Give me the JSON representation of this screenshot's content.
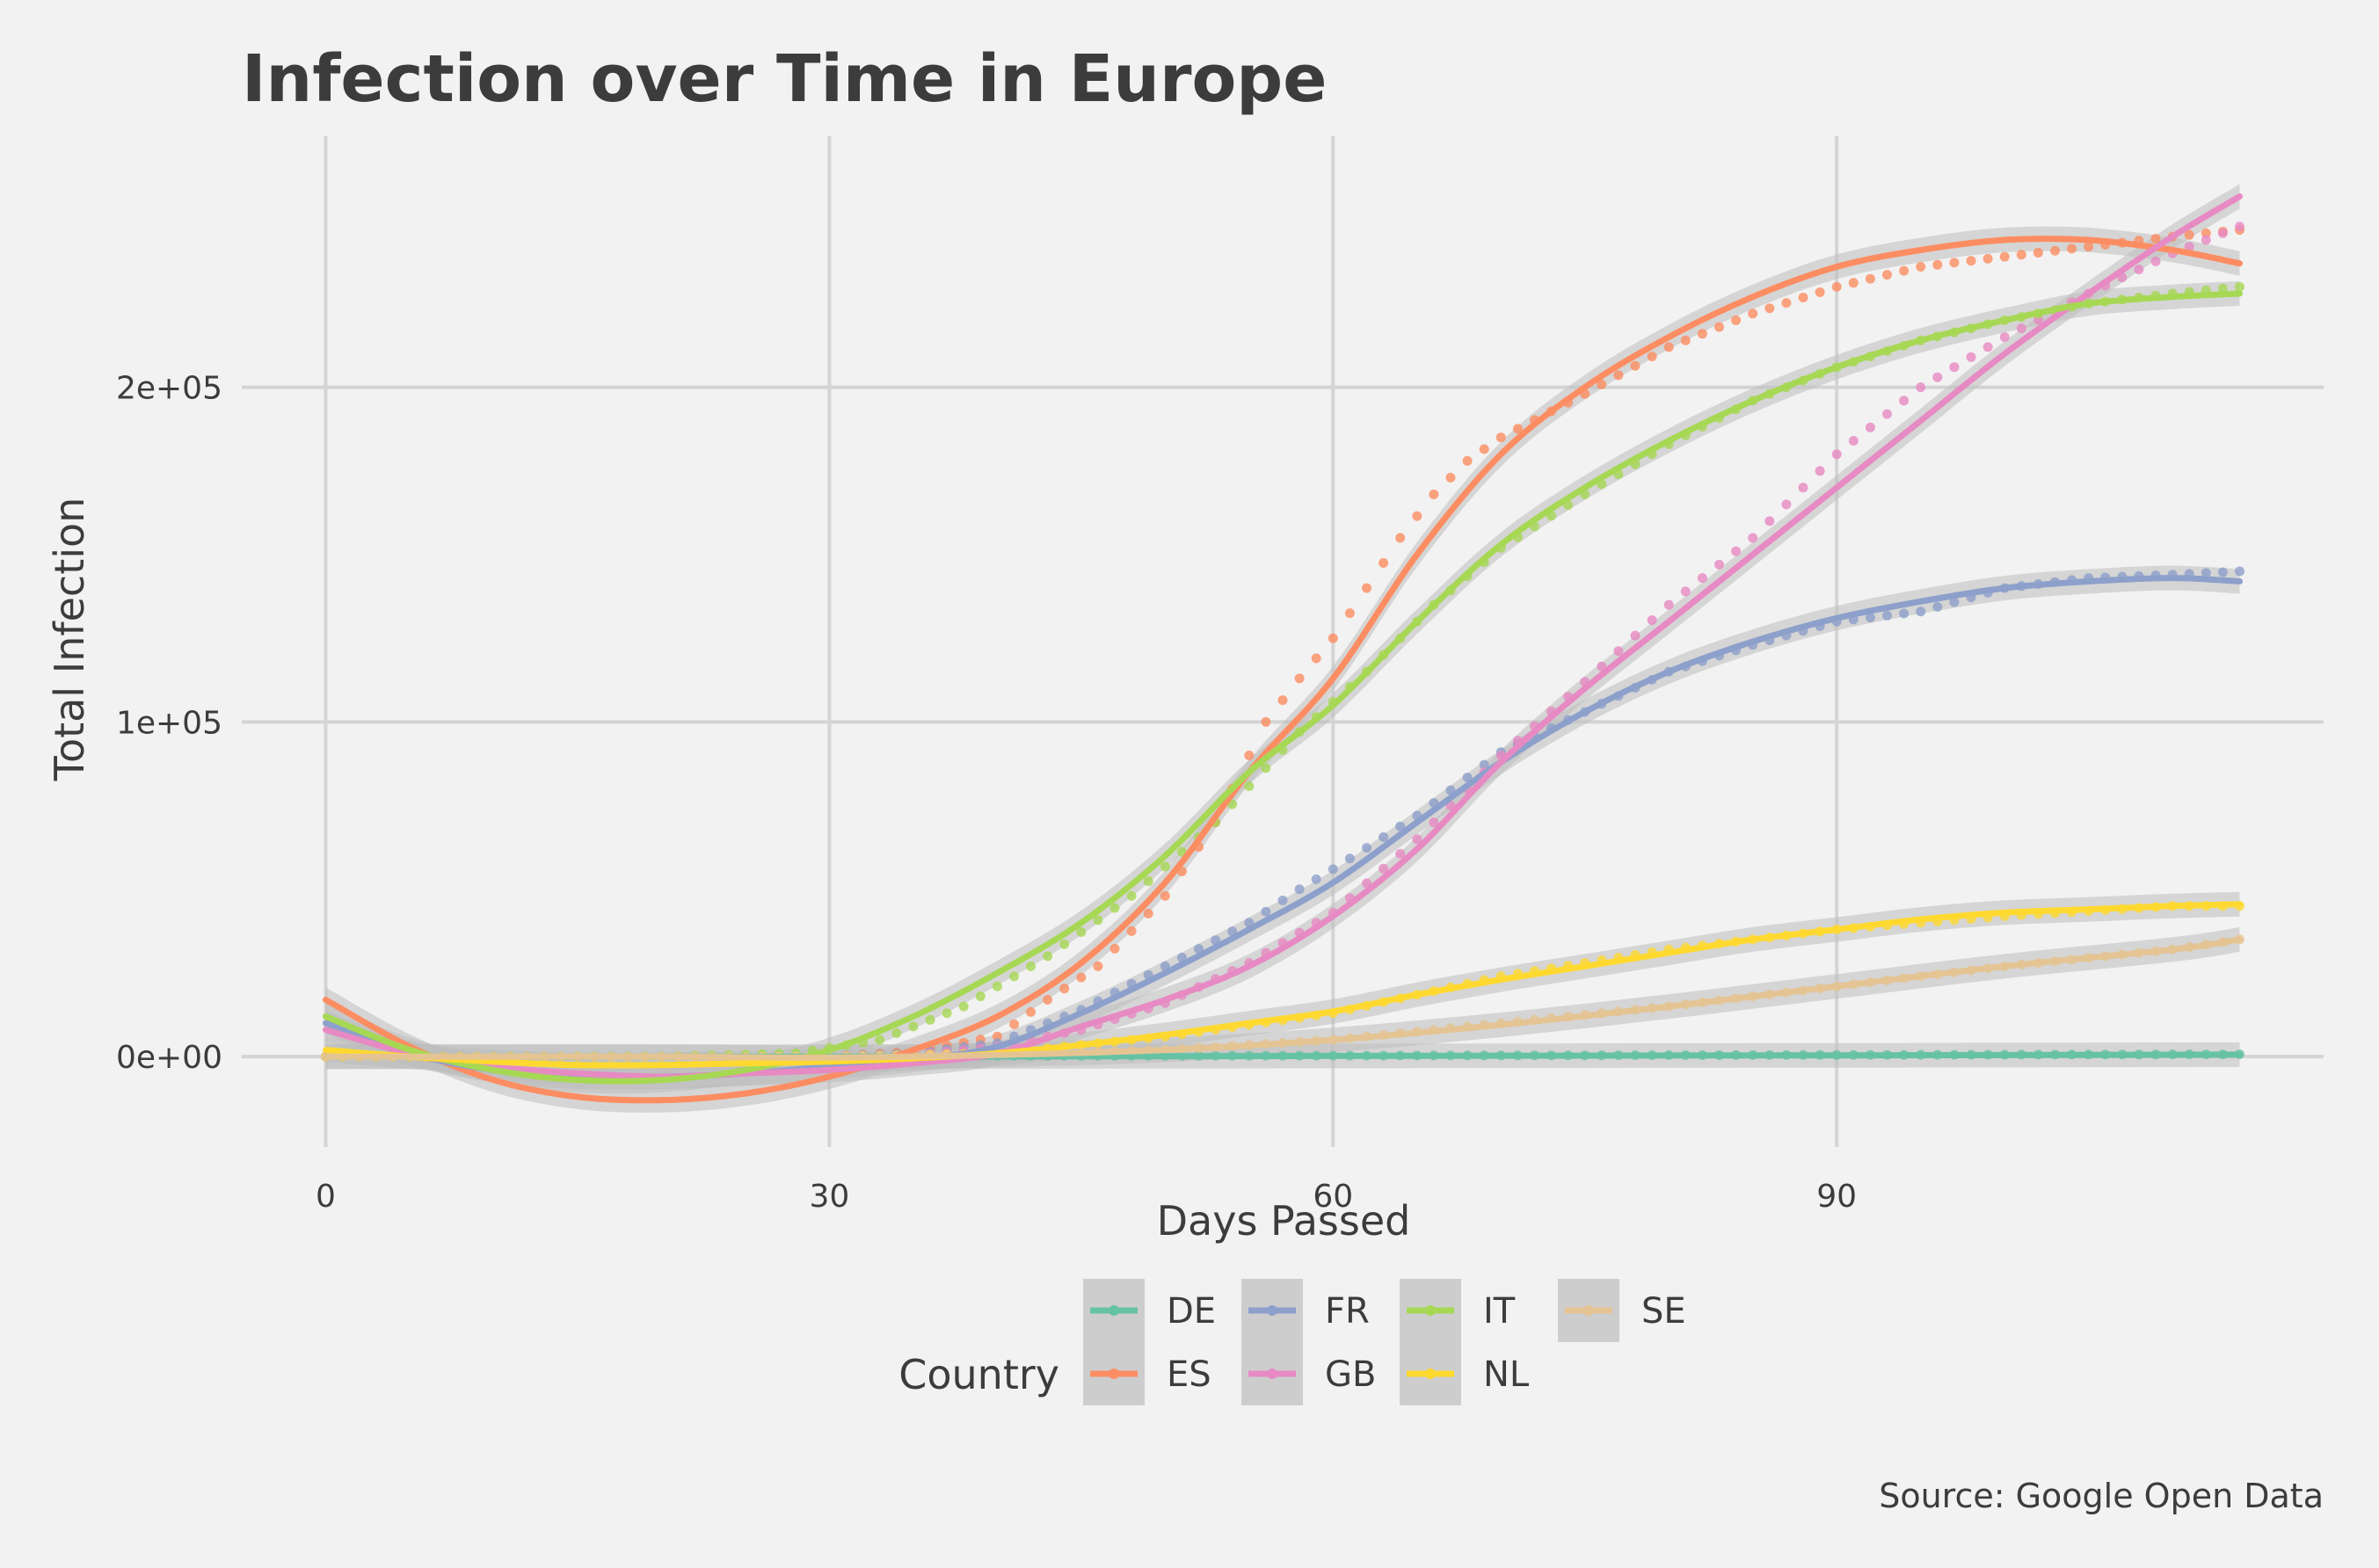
{
  "chart_data": {
    "type": "line",
    "title": "Infection over Time in Europe",
    "xlabel": "Days Passed",
    "ylabel": "Total Infection",
    "caption": "Source: Google Open Data",
    "xlim": [
      -5,
      119
    ],
    "ylim": [
      -27000,
      275000
    ],
    "xticks": [
      0,
      30,
      60,
      90
    ],
    "xtick_labels": [
      "0",
      "30",
      "60",
      "90"
    ],
    "yticks": [
      0,
      100000,
      200000
    ],
    "ytick_labels": [
      "0e+00",
      "1e+05",
      "2e+05"
    ],
    "grid": true,
    "legend": {
      "title": "Country",
      "position": "bottom"
    },
    "series": [
      {
        "name": "DE",
        "color": "#66c2a5",
        "points": [
          [
            0,
            0
          ],
          [
            30,
            200
          ],
          [
            60,
            300
          ],
          [
            90,
            500
          ],
          [
            114,
            700
          ]
        ],
        "fit": [
          [
            0,
            0
          ],
          [
            30,
            0
          ],
          [
            60,
            200
          ],
          [
            90,
            400
          ],
          [
            114,
            600
          ]
        ]
      },
      {
        "name": "ES",
        "color": "#fc8d62",
        "points": [
          [
            0,
            0
          ],
          [
            10,
            0
          ],
          [
            20,
            0
          ],
          [
            30,
            100
          ],
          [
            35,
            1500
          ],
          [
            40,
            6000
          ],
          [
            43,
            17000
          ],
          [
            46,
            27000
          ],
          [
            50,
            48000
          ],
          [
            53,
            70000
          ],
          [
            56,
            100000
          ],
          [
            58,
            113000
          ],
          [
            60,
            125000
          ],
          [
            62,
            140000
          ],
          [
            64,
            155000
          ],
          [
            66,
            168000
          ],
          [
            68,
            178000
          ],
          [
            70,
            185000
          ],
          [
            75,
            198000
          ],
          [
            80,
            212000
          ],
          [
            85,
            222000
          ],
          [
            90,
            230000
          ],
          [
            95,
            236000
          ],
          [
            100,
            239000
          ],
          [
            105,
            242000
          ],
          [
            110,
            245000
          ],
          [
            114,
            247000
          ]
        ],
        "fit": [
          [
            0,
            17000
          ],
          [
            5,
            3000
          ],
          [
            10,
            -7000
          ],
          [
            15,
            -12000
          ],
          [
            20,
            -13000
          ],
          [
            25,
            -11000
          ],
          [
            30,
            -6000
          ],
          [
            35,
            2000
          ],
          [
            40,
            12000
          ],
          [
            45,
            28000
          ],
          [
            50,
            52000
          ],
          [
            55,
            85000
          ],
          [
            60,
            113000
          ],
          [
            65,
            150000
          ],
          [
            70,
            180000
          ],
          [
            75,
            200000
          ],
          [
            80,
            215000
          ],
          [
            85,
            227000
          ],
          [
            90,
            236000
          ],
          [
            95,
            241000
          ],
          [
            100,
            244000
          ],
          [
            105,
            244000
          ],
          [
            110,
            241000
          ],
          [
            114,
            237000
          ]
        ]
      },
      {
        "name": "FR",
        "color": "#8da0cb",
        "points": [
          [
            0,
            0
          ],
          [
            10,
            0
          ],
          [
            20,
            0
          ],
          [
            30,
            100
          ],
          [
            35,
            1000
          ],
          [
            40,
            4000
          ],
          [
            45,
            14000
          ],
          [
            50,
            27000
          ],
          [
            55,
            40000
          ],
          [
            58,
            50000
          ],
          [
            60,
            56000
          ],
          [
            65,
            72000
          ],
          [
            70,
            91000
          ],
          [
            75,
            103000
          ],
          [
            80,
            115000
          ],
          [
            85,
            123000
          ],
          [
            90,
            130000
          ],
          [
            95,
            133000
          ],
          [
            100,
            140000
          ],
          [
            105,
            143000
          ],
          [
            110,
            144000
          ],
          [
            114,
            145000
          ]
        ],
        "fit": [
          [
            0,
            10000
          ],
          [
            5,
            1000
          ],
          [
            10,
            -4000
          ],
          [
            15,
            -6000
          ],
          [
            20,
            -6000
          ],
          [
            25,
            -5000
          ],
          [
            30,
            -3000
          ],
          [
            35,
            -1000
          ],
          [
            40,
            3000
          ],
          [
            45,
            13000
          ],
          [
            50,
            25000
          ],
          [
            55,
            38000
          ],
          [
            60,
            52000
          ],
          [
            65,
            70000
          ],
          [
            70,
            88000
          ],
          [
            75,
            103000
          ],
          [
            80,
            115000
          ],
          [
            85,
            124000
          ],
          [
            90,
            131000
          ],
          [
            95,
            136000
          ],
          [
            100,
            140000
          ],
          [
            105,
            142000
          ],
          [
            110,
            143000
          ],
          [
            114,
            142000
          ]
        ]
      },
      {
        "name": "GB",
        "color": "#e78ac3",
        "points": [
          [
            0,
            0
          ],
          [
            10,
            0
          ],
          [
            20,
            0
          ],
          [
            30,
            0
          ],
          [
            35,
            500
          ],
          [
            40,
            3000
          ],
          [
            45,
            8000
          ],
          [
            50,
            16000
          ],
          [
            55,
            28000
          ],
          [
            60,
            43000
          ],
          [
            65,
            65000
          ],
          [
            70,
            90000
          ],
          [
            75,
            112000
          ],
          [
            80,
            135000
          ],
          [
            85,
            155000
          ],
          [
            90,
            180000
          ],
          [
            95,
            200000
          ],
          [
            100,
            215000
          ],
          [
            105,
            228000
          ],
          [
            110,
            240000
          ],
          [
            114,
            248000
          ]
        ],
        "fit": [
          [
            0,
            8000
          ],
          [
            5,
            1000
          ],
          [
            10,
            -3000
          ],
          [
            15,
            -5000
          ],
          [
            20,
            -6000
          ],
          [
            25,
            -5000
          ],
          [
            30,
            -4000
          ],
          [
            35,
            -2000
          ],
          [
            40,
            1000
          ],
          [
            45,
            9000
          ],
          [
            50,
            17000
          ],
          [
            55,
            27000
          ],
          [
            60,
            42000
          ],
          [
            65,
            62000
          ],
          [
            70,
            88000
          ],
          [
            75,
            110000
          ],
          [
            80,
            130000
          ],
          [
            85,
            150000
          ],
          [
            90,
            170000
          ],
          [
            95,
            190000
          ],
          [
            100,
            210000
          ],
          [
            105,
            228000
          ],
          [
            110,
            245000
          ],
          [
            114,
            257000
          ]
        ]
      },
      {
        "name": "IT",
        "color": "#a6d854",
        "points": [
          [
            0,
            0
          ],
          [
            10,
            0
          ],
          [
            20,
            0
          ],
          [
            28,
            1000
          ],
          [
            33,
            5000
          ],
          [
            38,
            15000
          ],
          [
            43,
            30000
          ],
          [
            48,
            48000
          ],
          [
            53,
            70000
          ],
          [
            58,
            97000
          ],
          [
            62,
            115000
          ],
          [
            66,
            135000
          ],
          [
            70,
            152000
          ],
          [
            75,
            168000
          ],
          [
            80,
            183000
          ],
          [
            85,
            196000
          ],
          [
            90,
            206000
          ],
          [
            95,
            214000
          ],
          [
            100,
            220000
          ],
          [
            105,
            225000
          ],
          [
            110,
            228000
          ],
          [
            114,
            230000
          ]
        ],
        "fit": [
          [
            0,
            12000
          ],
          [
            5,
            2000
          ],
          [
            10,
            -4000
          ],
          [
            15,
            -7000
          ],
          [
            20,
            -7000
          ],
          [
            25,
            -4000
          ],
          [
            30,
            2000
          ],
          [
            35,
            12000
          ],
          [
            40,
            25000
          ],
          [
            45,
            40000
          ],
          [
            50,
            60000
          ],
          [
            55,
            85000
          ],
          [
            60,
            105000
          ],
          [
            65,
            130000
          ],
          [
            70,
            153000
          ],
          [
            75,
            170000
          ],
          [
            80,
            184000
          ],
          [
            85,
            196000
          ],
          [
            90,
            206000
          ],
          [
            95,
            214000
          ],
          [
            100,
            220000
          ],
          [
            105,
            225000
          ],
          [
            110,
            227000
          ],
          [
            114,
            228000
          ]
        ]
      },
      {
        "name": "NL",
        "color": "#ffd92f",
        "points": [
          [
            0,
            0
          ],
          [
            20,
            0
          ],
          [
            30,
            0
          ],
          [
            40,
            1000
          ],
          [
            50,
            6000
          ],
          [
            60,
            13000
          ],
          [
            70,
            24000
          ],
          [
            80,
            32000
          ],
          [
            90,
            38000
          ],
          [
            100,
            42000
          ],
          [
            110,
            45000
          ],
          [
            114,
            45000
          ]
        ],
        "fit": [
          [
            0,
            2000
          ],
          [
            5,
            0
          ],
          [
            10,
            -1500
          ],
          [
            15,
            -2500
          ],
          [
            20,
            -2500
          ],
          [
            25,
            -2000
          ],
          [
            30,
            -1500
          ],
          [
            35,
            -500
          ],
          [
            40,
            1000
          ],
          [
            45,
            3500
          ],
          [
            50,
            6500
          ],
          [
            55,
            10000
          ],
          [
            60,
            13500
          ],
          [
            65,
            18500
          ],
          [
            70,
            23000
          ],
          [
            75,
            27000
          ],
          [
            80,
            31000
          ],
          [
            85,
            35000
          ],
          [
            90,
            38000
          ],
          [
            95,
            41000
          ],
          [
            100,
            43000
          ],
          [
            105,
            44000
          ],
          [
            110,
            45000
          ],
          [
            114,
            45500
          ]
        ]
      },
      {
        "name": "SE",
        "color": "#e5c494",
        "points": [
          [
            0,
            0
          ],
          [
            30,
            0
          ],
          [
            40,
            500
          ],
          [
            50,
            2000
          ],
          [
            60,
            5000
          ],
          [
            70,
            10000
          ],
          [
            80,
            15000
          ],
          [
            90,
            21000
          ],
          [
            100,
            27000
          ],
          [
            110,
            32000
          ],
          [
            114,
            35000
          ]
        ],
        "fit": [
          [
            0,
            0
          ],
          [
            10,
            0
          ],
          [
            20,
            0
          ],
          [
            30,
            -300
          ],
          [
            40,
            500
          ],
          [
            50,
            2000
          ],
          [
            60,
            5000
          ],
          [
            70,
            9500
          ],
          [
            80,
            15000
          ],
          [
            90,
            21000
          ],
          [
            100,
            27000
          ],
          [
            110,
            32000
          ],
          [
            114,
            35000
          ]
        ]
      }
    ]
  }
}
